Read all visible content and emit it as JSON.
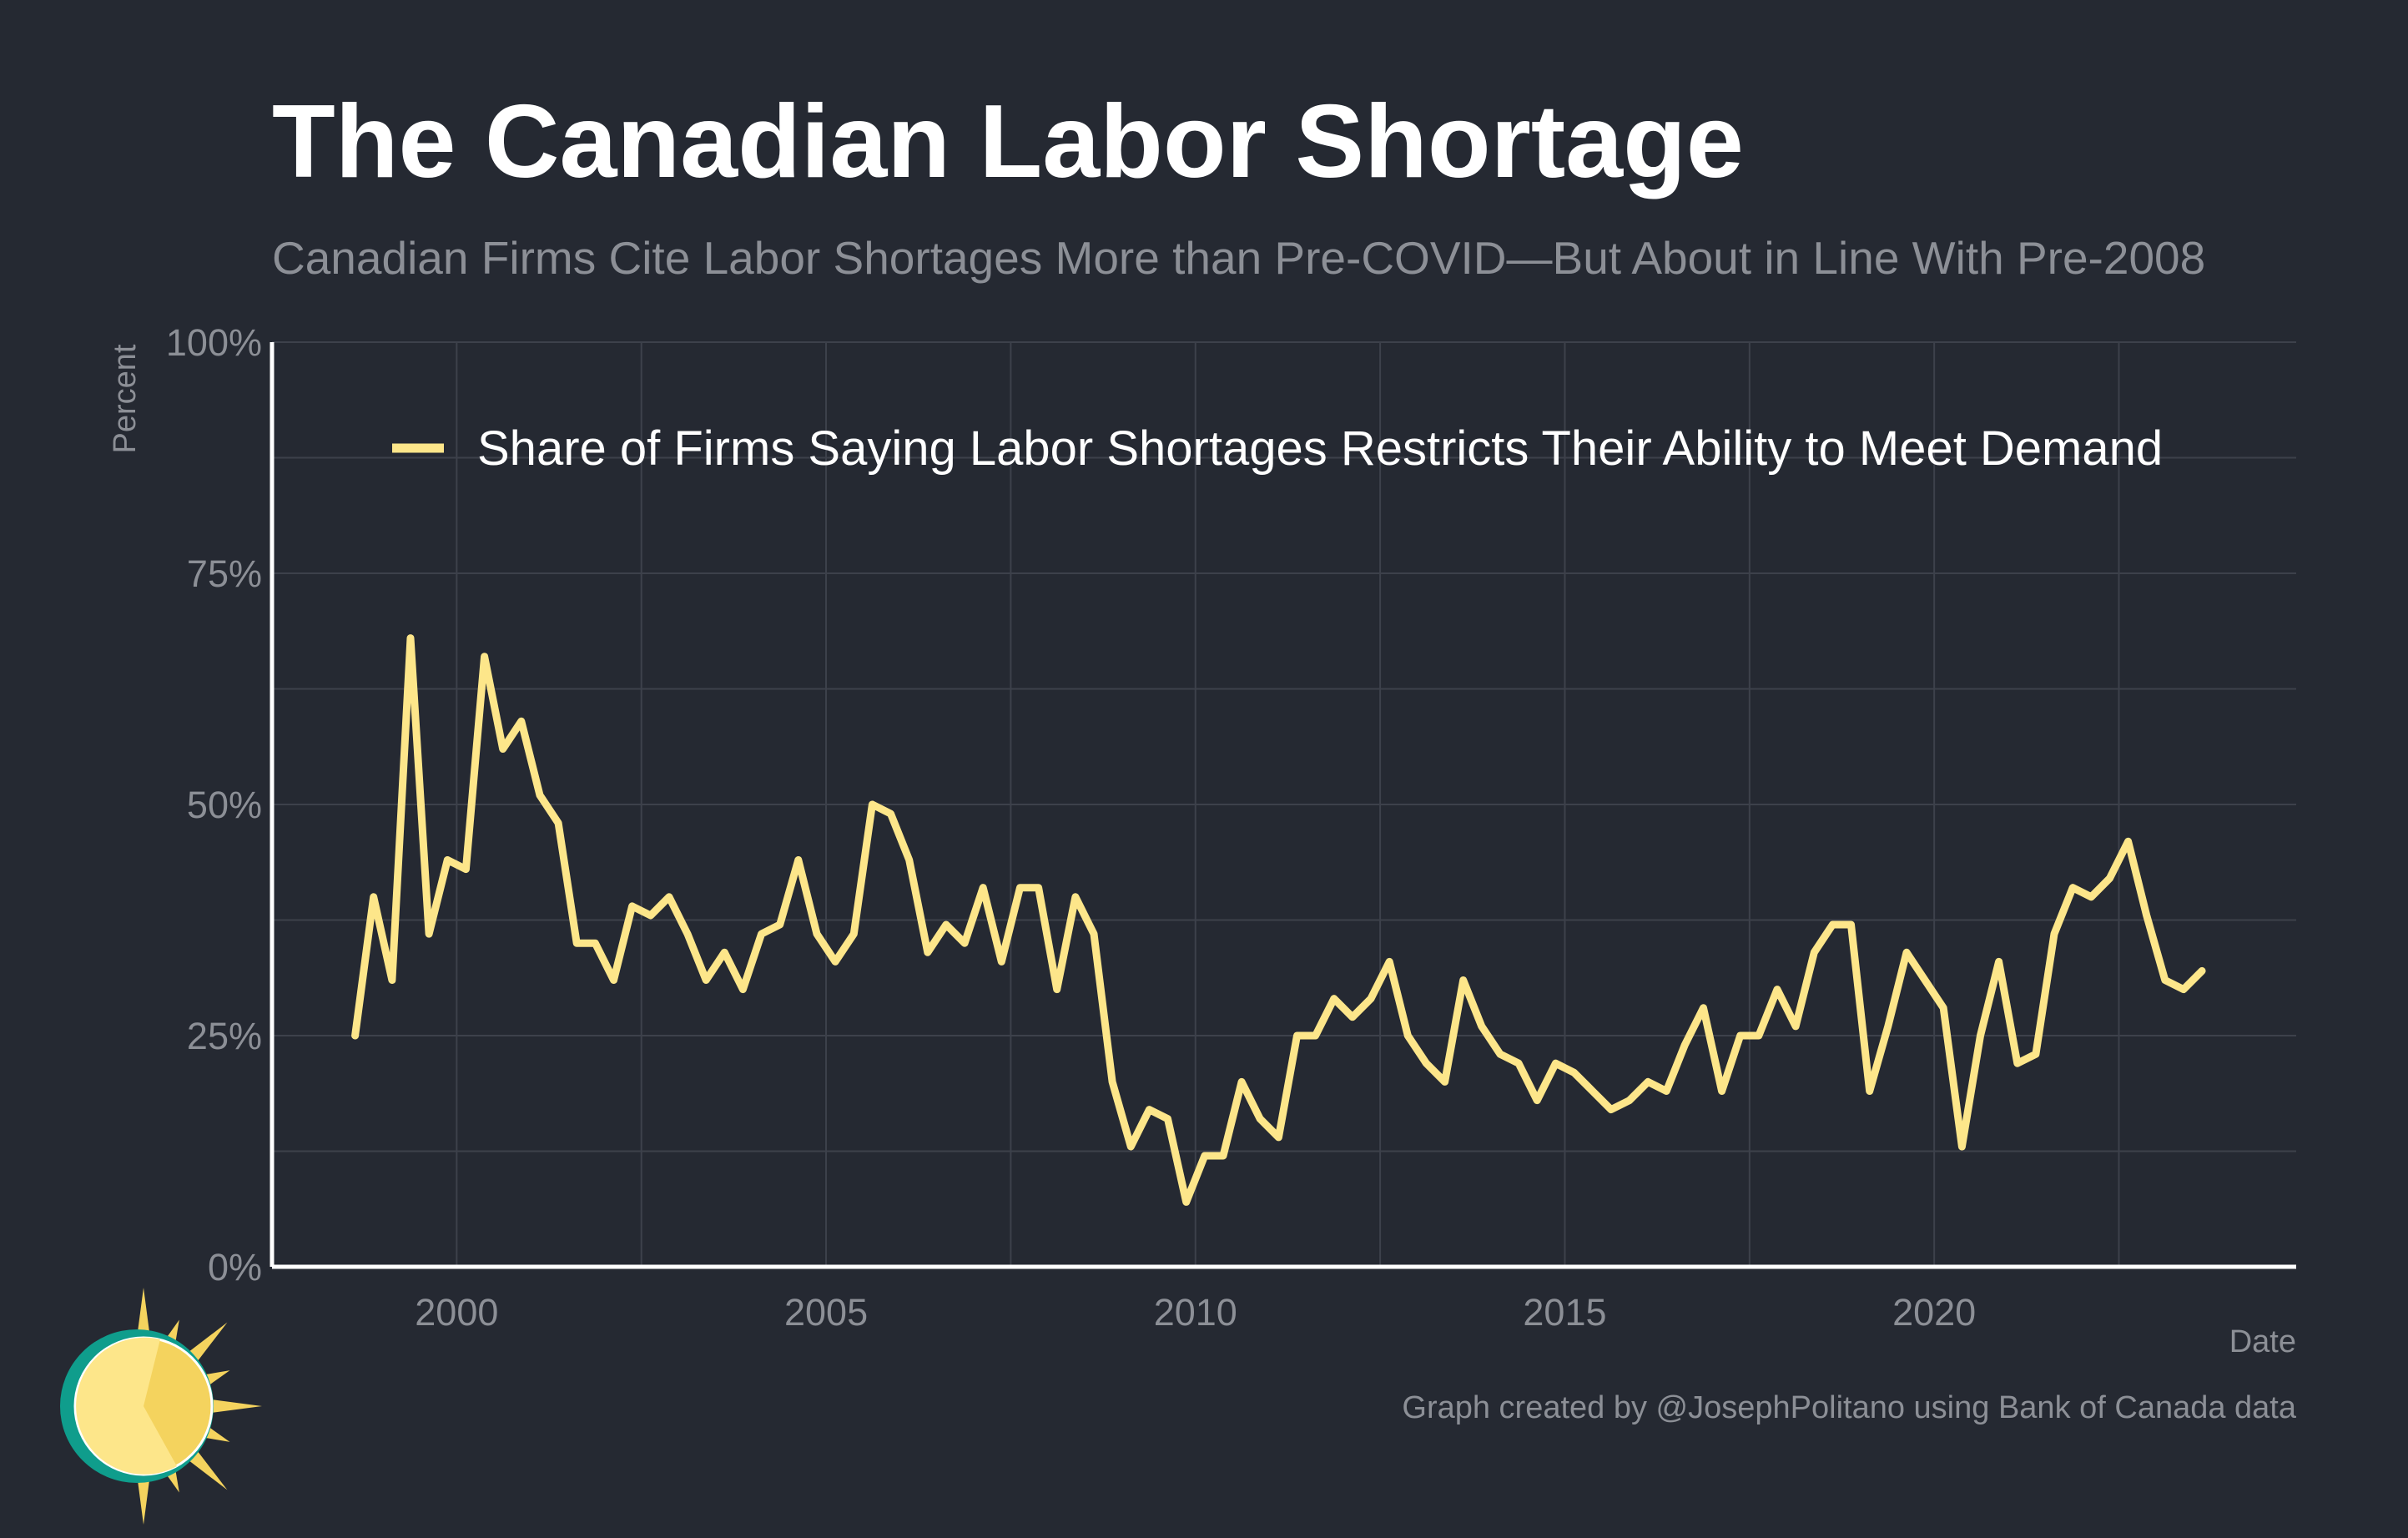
{
  "chart_data": {
    "type": "line",
    "title": "The Canadian Labor Shortage",
    "subtitle": "Canadian Firms Cite Labor Shortages More than Pre-COVID—But About in Line With Pre-2008",
    "xlabel": "Date",
    "ylabel": "Percent",
    "caption": "Graph created by @JosephPolitano using Bank of Canada data",
    "xlim": [
      1997.5,
      2024.9
    ],
    "ylim": [
      0,
      100
    ],
    "x_ticks": [
      2000,
      2005,
      2010,
      2015,
      2020
    ],
    "x_tick_labels": [
      "2000",
      "2005",
      "2010",
      "2015",
      "2020"
    ],
    "y_ticks": [
      0,
      25,
      50,
      75,
      100
    ],
    "y_tick_labels": [
      "0%",
      "25%",
      "50%",
      "75%",
      "100%"
    ],
    "grid": true,
    "legend_position": "top-right",
    "series": [
      {
        "name": "Share of Firms Saying Labor Shortages Restricts Their Ability to Meet Demand",
        "color": "#fde68a",
        "points": [
          [
            "1998-Q3",
            25
          ],
          [
            "1998-Q4",
            40
          ],
          [
            "1999-Q1",
            31
          ],
          [
            "1999-Q2",
            68
          ],
          [
            "1999-Q3",
            36
          ],
          [
            "1999-Q4",
            44
          ],
          [
            "2000-Q1",
            43
          ],
          [
            "2000-Q2",
            66
          ],
          [
            "2000-Q3",
            56
          ],
          [
            "2000-Q4",
            59
          ],
          [
            "2001-Q1",
            51
          ],
          [
            "2001-Q2",
            48
          ],
          [
            "2001-Q3",
            35
          ],
          [
            "2001-Q4",
            35
          ],
          [
            "2002-Q1",
            31
          ],
          [
            "2002-Q2",
            39
          ],
          [
            "2002-Q3",
            38
          ],
          [
            "2002-Q4",
            40
          ],
          [
            "2003-Q1",
            36
          ],
          [
            "2003-Q2",
            31
          ],
          [
            "2003-Q3",
            34
          ],
          [
            "2003-Q4",
            30
          ],
          [
            "2004-Q1",
            36
          ],
          [
            "2004-Q2",
            37
          ],
          [
            "2004-Q3",
            44
          ],
          [
            "2004-Q4",
            36
          ],
          [
            "2005-Q1",
            33
          ],
          [
            "2005-Q2",
            36
          ],
          [
            "2005-Q3",
            50
          ],
          [
            "2005-Q4",
            49
          ],
          [
            "2006-Q1",
            44
          ],
          [
            "2006-Q2",
            34
          ],
          [
            "2006-Q3",
            37
          ],
          [
            "2006-Q4",
            35
          ],
          [
            "2007-Q1",
            41
          ],
          [
            "2007-Q2",
            33
          ],
          [
            "2007-Q3",
            41
          ],
          [
            "2007-Q4",
            41
          ],
          [
            "2008-Q1",
            30
          ],
          [
            "2008-Q2",
            40
          ],
          [
            "2008-Q3",
            36
          ],
          [
            "2008-Q4",
            20
          ],
          [
            "2009-Q1",
            13
          ],
          [
            "2009-Q2",
            17
          ],
          [
            "2009-Q3",
            16
          ],
          [
            "2009-Q4",
            7
          ],
          [
            "2010-Q1",
            12
          ],
          [
            "2010-Q2",
            12
          ],
          [
            "2010-Q3",
            20
          ],
          [
            "2010-Q4",
            16
          ],
          [
            "2011-Q1",
            14
          ],
          [
            "2011-Q2",
            25
          ],
          [
            "2011-Q3",
            25
          ],
          [
            "2011-Q4",
            29
          ],
          [
            "2012-Q1",
            27
          ],
          [
            "2012-Q2",
            29
          ],
          [
            "2012-Q3",
            33
          ],
          [
            "2012-Q4",
            25
          ],
          [
            "2013-Q1",
            22
          ],
          [
            "2013-Q2",
            20
          ],
          [
            "2013-Q3",
            31
          ],
          [
            "2013-Q4",
            26
          ],
          [
            "2014-Q1",
            23
          ],
          [
            "2014-Q2",
            22
          ],
          [
            "2014-Q3",
            18
          ],
          [
            "2014-Q4",
            22
          ],
          [
            "2015-Q1",
            21
          ],
          [
            "2015-Q2",
            19
          ],
          [
            "2015-Q3",
            17
          ],
          [
            "2015-Q4",
            18
          ],
          [
            "2016-Q1",
            20
          ],
          [
            "2016-Q2",
            19
          ],
          [
            "2016-Q3",
            24
          ],
          [
            "2016-Q4",
            28
          ],
          [
            "2017-Q1",
            19
          ],
          [
            "2017-Q2",
            25
          ],
          [
            "2017-Q3",
            25
          ],
          [
            "2017-Q4",
            30
          ],
          [
            "2018-Q1",
            26
          ],
          [
            "2018-Q2",
            34
          ],
          [
            "2018-Q3",
            37
          ],
          [
            "2018-Q4",
            37
          ],
          [
            "2019-Q1",
            19
          ],
          [
            "2019-Q2",
            26
          ],
          [
            "2019-Q3",
            34
          ],
          [
            "2019-Q4",
            31
          ],
          [
            "2020-Q1",
            28
          ],
          [
            "2020-Q2",
            13
          ],
          [
            "2020-Q3",
            25
          ],
          [
            "2020-Q4",
            33
          ],
          [
            "2021-Q1",
            22
          ],
          [
            "2021-Q2",
            23
          ],
          [
            "2021-Q3",
            36
          ],
          [
            "2021-Q4",
            41
          ],
          [
            "2022-Q1",
            40
          ],
          [
            "2022-Q2",
            42
          ],
          [
            "2022-Q3",
            46
          ],
          [
            "2022-Q4",
            38
          ],
          [
            "2023-Q1",
            31
          ],
          [
            "2023-Q2",
            30
          ],
          [
            "2023-Q3",
            32
          ]
        ]
      }
    ]
  },
  "colors": {
    "background": "#252932",
    "grid": "#3d414b",
    "axis": "#ffffff",
    "muted_text": "#8c8f96",
    "line": "#fde68a"
  },
  "logo": {
    "icon": "sun-logo-icon"
  }
}
